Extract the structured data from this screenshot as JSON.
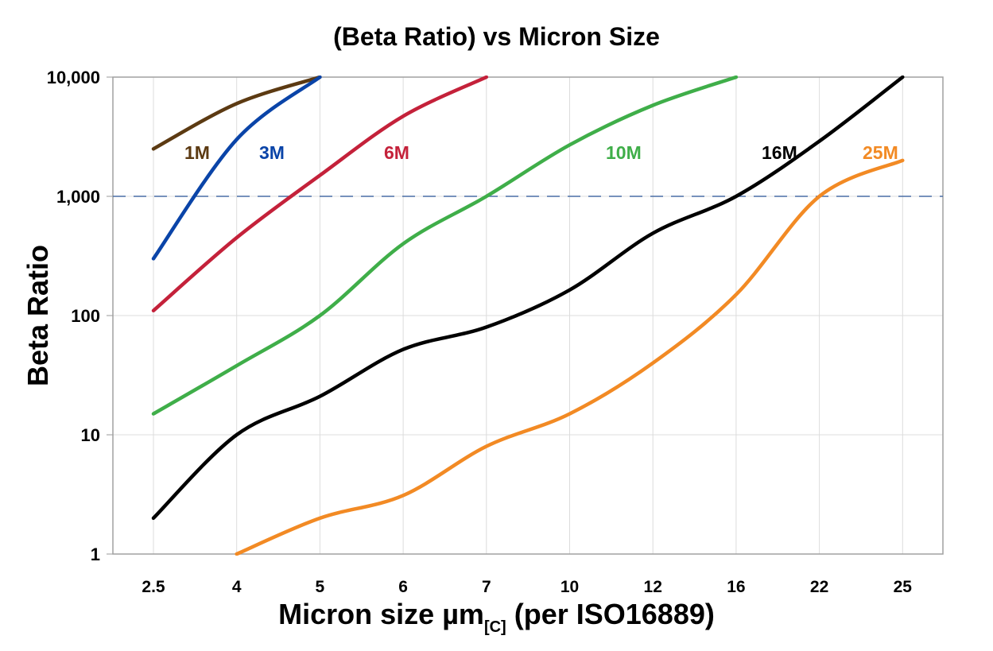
{
  "chart_data": {
    "type": "line",
    "title": "(Beta Ratio) vs Micron Size",
    "xlabel": {
      "main": "Micron size µm",
      "subscript": "[C]",
      "suffix": " (per ISO16889)"
    },
    "ylabel": "Beta Ratio",
    "categories": [
      "2.5",
      "4",
      "5",
      "6",
      "7",
      "10",
      "12",
      "16",
      "22",
      "25"
    ],
    "y_scale": "log",
    "ylim": [
      1,
      10000
    ],
    "y_ticks": [
      1,
      10,
      100,
      1000,
      10000
    ],
    "y_tick_labels": [
      "1",
      "10",
      "100",
      "1,000",
      "10,000"
    ],
    "grid": true,
    "reference_line": {
      "value": 1000,
      "style": "dashed",
      "color": "#4a6fa5"
    },
    "series": [
      {
        "name": "1M",
        "color": "#5c3a12",
        "values": [
          2500,
          6000,
          10000,
          null,
          null,
          null,
          null,
          null,
          null,
          null
        ]
      },
      {
        "name": "3M",
        "color": "#0a44a8",
        "values": [
          300,
          3000,
          10000,
          null,
          null,
          null,
          null,
          null,
          null,
          null
        ]
      },
      {
        "name": "6M",
        "color": "#c4213a",
        "values": [
          110,
          450,
          1500,
          4700,
          10000,
          null,
          null,
          null,
          null,
          null
        ]
      },
      {
        "name": "10M",
        "color": "#3fae49",
        "values": [
          15,
          38,
          100,
          400,
          1000,
          2700,
          5800,
          10000,
          null,
          null
        ]
      },
      {
        "name": "16M",
        "color": "#000000",
        "values": [
          2,
          10,
          21,
          52,
          80,
          164,
          490,
          1000,
          2900,
          10000
        ]
      },
      {
        "name": "25M",
        "color": "#f28a24",
        "values": [
          null,
          1,
          2,
          3.1,
          8,
          15,
          40,
          150,
          1000,
          2000
        ]
      }
    ]
  }
}
